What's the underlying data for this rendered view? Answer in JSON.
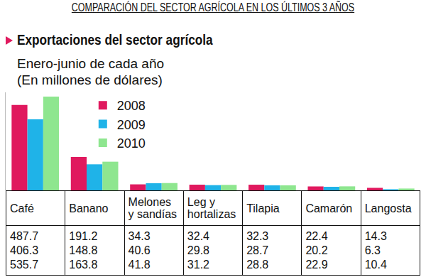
{
  "chart_data": {
    "type": "bar",
    "title": "COMPARACIÓN DEL SECTOR AGRÍCOLA EN LOS ÚLTIMOS 3 AÑOS",
    "subtitle": "Exportaciones del sector agrícola",
    "annotations": [
      "Enero-junio de cada año",
      "(En millones de dólares)"
    ],
    "categories": [
      "Café",
      "Banano",
      "Melones y sandías",
      "Leg y hortalizas",
      "Tilapia",
      "Camarón",
      "Langosta"
    ],
    "series": [
      {
        "name": "2008",
        "color": "#e0195e",
        "values": [
          487.7,
          191.2,
          34.3,
          32.4,
          32.3,
          22.4,
          14.3
        ]
      },
      {
        "name": "2009",
        "color": "#1fb3e8",
        "values": [
          406.3,
          148.8,
          40.6,
          29.8,
          28.7,
          20.2,
          6.3
        ]
      },
      {
        "name": "2010",
        "color": "#8ee68f",
        "values": [
          535.7,
          163.8,
          41.8,
          31.2,
          28.8,
          22.9,
          10.4
        ]
      }
    ],
    "ylim": [
      0,
      560
    ],
    "grid": false,
    "legend": "top left",
    "data_labels": false,
    "tick_labels": false
  }
}
